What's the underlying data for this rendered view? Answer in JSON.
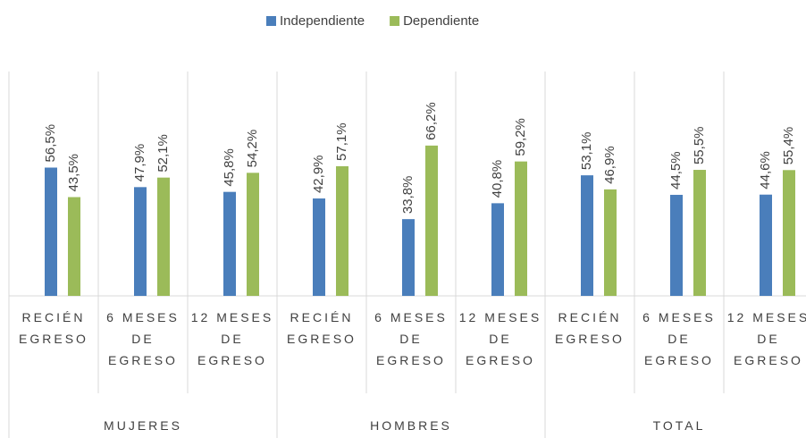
{
  "chart_data": {
    "type": "bar",
    "categories": [
      "RECIÉN EGRESO",
      "6 MESES DE EGRESO",
      "12 MESES DE EGRESO",
      "RECIÉN EGRESO",
      "6 MESES DE EGRESO",
      "12 MESES DE EGRESO",
      "RECIÉN EGRESO",
      "6 MESES DE EGRESO",
      "12 MESES DE EGRESO"
    ],
    "groups": [
      "MUJERES",
      "HOMBRES",
      "TOTAL"
    ],
    "series": [
      {
        "name": "Independiente",
        "color": "#4a7ebb",
        "values": [
          56.5,
          47.9,
          45.8,
          42.9,
          33.8,
          40.8,
          53.1,
          44.5,
          44.6
        ],
        "value_labels": [
          "56,5%",
          "47,9%",
          "45,8%",
          "42,9%",
          "33,8%",
          "40,8%",
          "53,1%",
          "44,5%",
          "44,6%"
        ]
      },
      {
        "name": "Dependiente",
        "color": "#9bbb59",
        "values": [
          43.5,
          52.1,
          54.2,
          57.1,
          66.2,
          59.2,
          46.9,
          55.5,
          55.4
        ],
        "value_labels": [
          "43,5%",
          "52,1%",
          "54,2%",
          "57,1%",
          "66,2%",
          "59,2%",
          "46,9%",
          "55,5%",
          "55,4%"
        ]
      }
    ],
    "ylim": [
      0,
      100
    ],
    "legend": "top"
  }
}
